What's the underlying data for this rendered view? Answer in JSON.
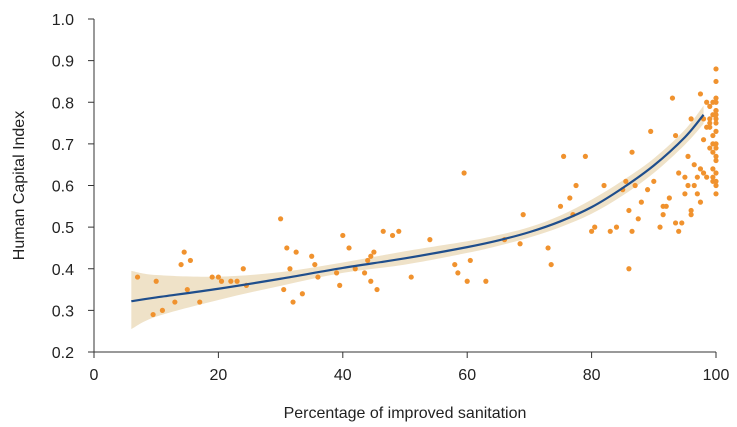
{
  "chart_data": {
    "type": "scatter",
    "title": "",
    "xlabel": "Percentage of improved sanitation",
    "ylabel": "Human Capital Index",
    "xlim": [
      0,
      100
    ],
    "ylim": [
      0.2,
      1.0
    ],
    "x_ticks": [
      "0",
      "20",
      "40",
      "60",
      "80",
      "100"
    ],
    "y_ticks": [
      "0.2",
      "0.3",
      "0.4",
      "0.5",
      "0.6",
      "0.7",
      "0.8",
      "0.9",
      "1.0"
    ],
    "grid": false,
    "legend": "none",
    "colors": {
      "points": "#F0922E",
      "fit_line": "#1F4E8C",
      "confidence_band": "#EFE2C8"
    },
    "points": [
      [
        7,
        0.38
      ],
      [
        9.5,
        0.29
      ],
      [
        10,
        0.37
      ],
      [
        11,
        0.3
      ],
      [
        13,
        0.32
      ],
      [
        14,
        0.41
      ],
      [
        14.5,
        0.44
      ],
      [
        15,
        0.35
      ],
      [
        15.5,
        0.42
      ],
      [
        17,
        0.32
      ],
      [
        19,
        0.38
      ],
      [
        20,
        0.38
      ],
      [
        20.5,
        0.37
      ],
      [
        22,
        0.37
      ],
      [
        23,
        0.37
      ],
      [
        24,
        0.4
      ],
      [
        24.5,
        0.36
      ],
      [
        30,
        0.52
      ],
      [
        30.5,
        0.35
      ],
      [
        31,
        0.45
      ],
      [
        31.5,
        0.4
      ],
      [
        32,
        0.32
      ],
      [
        32.5,
        0.44
      ],
      [
        33.5,
        0.34
      ],
      [
        35,
        0.43
      ],
      [
        35.5,
        0.41
      ],
      [
        36,
        0.38
      ],
      [
        39,
        0.39
      ],
      [
        39.5,
        0.36
      ],
      [
        40,
        0.48
      ],
      [
        41,
        0.45
      ],
      [
        42,
        0.4
      ],
      [
        43.5,
        0.39
      ],
      [
        44,
        0.42
      ],
      [
        44.5,
        0.43
      ],
      [
        44.5,
        0.37
      ],
      [
        45,
        0.44
      ],
      [
        45.5,
        0.35
      ],
      [
        46.5,
        0.49
      ],
      [
        48,
        0.48
      ],
      [
        49,
        0.49
      ],
      [
        51,
        0.38
      ],
      [
        54,
        0.47
      ],
      [
        58,
        0.41
      ],
      [
        58.5,
        0.39
      ],
      [
        59.5,
        0.63
      ],
      [
        60,
        0.37
      ],
      [
        60.5,
        0.42
      ],
      [
        63,
        0.37
      ],
      [
        66,
        0.47
      ],
      [
        68.5,
        0.46
      ],
      [
        69,
        0.53
      ],
      [
        73,
        0.45
      ],
      [
        73.5,
        0.41
      ],
      [
        75,
        0.55
      ],
      [
        75.5,
        0.67
      ],
      [
        76.5,
        0.57
      ],
      [
        77,
        0.53
      ],
      [
        77.5,
        0.6
      ],
      [
        79,
        0.67
      ],
      [
        80,
        0.49
      ],
      [
        80.5,
        0.5
      ],
      [
        82,
        0.6
      ],
      [
        83,
        0.49
      ],
      [
        84,
        0.5
      ],
      [
        85,
        0.59
      ],
      [
        85.5,
        0.61
      ],
      [
        86,
        0.54
      ],
      [
        86,
        0.4
      ],
      [
        86.5,
        0.68
      ],
      [
        86.5,
        0.49
      ],
      [
        87,
        0.6
      ],
      [
        87.5,
        0.52
      ],
      [
        88,
        0.56
      ],
      [
        89,
        0.59
      ],
      [
        89.5,
        0.73
      ],
      [
        90,
        0.61
      ],
      [
        91,
        0.5
      ],
      [
        91.5,
        0.55
      ],
      [
        91.5,
        0.53
      ],
      [
        92,
        0.55
      ],
      [
        92.5,
        0.57
      ],
      [
        93,
        0.81
      ],
      [
        93.5,
        0.72
      ],
      [
        93.5,
        0.51
      ],
      [
        94,
        0.49
      ],
      [
        94,
        0.63
      ],
      [
        94.5,
        0.51
      ],
      [
        95,
        0.58
      ],
      [
        95,
        0.62
      ],
      [
        95.5,
        0.6
      ],
      [
        95.5,
        0.67
      ],
      [
        96,
        0.53
      ],
      [
        96,
        0.76
      ],
      [
        96,
        0.54
      ],
      [
        96.5,
        0.6
      ],
      [
        96.5,
        0.65
      ],
      [
        97,
        0.62
      ],
      [
        97,
        0.58
      ],
      [
        97.5,
        0.64
      ],
      [
        97.5,
        0.82
      ],
      [
        97.5,
        0.56
      ],
      [
        98,
        0.71
      ],
      [
        98,
        0.76
      ],
      [
        98,
        0.63
      ],
      [
        98.5,
        0.8
      ],
      [
        98.5,
        0.74
      ],
      [
        98.5,
        0.62
      ],
      [
        99,
        0.69
      ],
      [
        99,
        0.74
      ],
      [
        99,
        0.75
      ],
      [
        99,
        0.79
      ],
      [
        99,
        0.76
      ],
      [
        99.5,
        0.8
      ],
      [
        99.5,
        0.77
      ],
      [
        99.5,
        0.72
      ],
      [
        99.5,
        0.68
      ],
      [
        99.5,
        0.7
      ],
      [
        99.5,
        0.62
      ],
      [
        99.5,
        0.61
      ],
      [
        99.5,
        0.64
      ],
      [
        100,
        0.8
      ],
      [
        100,
        0.76
      ],
      [
        100,
        0.78
      ],
      [
        100,
        0.88
      ],
      [
        100,
        0.85
      ],
      [
        100,
        0.78
      ],
      [
        100,
        0.73
      ],
      [
        100,
        0.69
      ],
      [
        100,
        0.66
      ],
      [
        100,
        0.67
      ],
      [
        100,
        0.6
      ],
      [
        100,
        0.58
      ],
      [
        100,
        0.75
      ],
      [
        100,
        0.77
      ],
      [
        100,
        0.81
      ],
      [
        100,
        0.63
      ],
      [
        100,
        0.61
      ],
      [
        100,
        0.7
      ]
    ],
    "fit_line": {
      "x": [
        6,
        10,
        20,
        30,
        40,
        50,
        60,
        65,
        70,
        75,
        80,
        85,
        90,
        95,
        98
      ],
      "y": [
        0.322,
        0.331,
        0.352,
        0.376,
        0.402,
        0.425,
        0.452,
        0.468,
        0.488,
        0.514,
        0.548,
        0.594,
        0.648,
        0.716,
        0.77
      ]
    },
    "confidence_band": {
      "x": [
        6,
        10,
        20,
        30,
        40,
        50,
        60,
        65,
        70,
        75,
        80,
        85,
        90,
        95,
        98
      ],
      "upper": [
        0.395,
        0.385,
        0.381,
        0.392,
        0.415,
        0.442,
        0.466,
        0.481,
        0.5,
        0.528,
        0.566,
        0.612,
        0.665,
        0.734,
        0.792
      ],
      "lower": [
        0.255,
        0.285,
        0.325,
        0.359,
        0.39,
        0.41,
        0.438,
        0.455,
        0.475,
        0.5,
        0.532,
        0.576,
        0.63,
        0.698,
        0.748
      ]
    }
  }
}
